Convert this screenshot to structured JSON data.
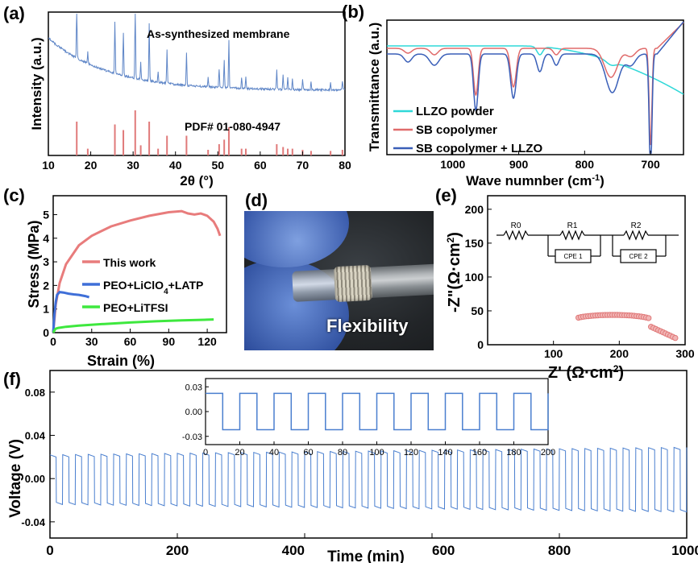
{
  "panel_labels": [
    "(a)",
    "(b)",
    "(c)",
    "(d)",
    "(e)",
    "(f)"
  ],
  "chart_data": [
    {
      "id": "a",
      "type": "line",
      "ylabel": "Intensity (a.u.)",
      "xlabel": "2θ (°)",
      "xlim": [
        10,
        80
      ],
      "xticks": [
        "10",
        "20",
        "30",
        "40",
        "50",
        "60",
        "70",
        "80"
      ],
      "annotations": [
        "As-synthesized membrane",
        "PDF# 01-080-4947"
      ],
      "series": [
        {
          "color": "#5f86c7"
        }
      ],
      "reference_peaks": [
        {
          "x": 16.7,
          "h": 0.6
        },
        {
          "x": 19.3,
          "h": 0.12
        },
        {
          "x": 25.7,
          "h": 0.55
        },
        {
          "x": 27.7,
          "h": 0.45
        },
        {
          "x": 30.5,
          "h": 0.8
        },
        {
          "x": 31.8,
          "h": 0.18
        },
        {
          "x": 33.8,
          "h": 0.6
        },
        {
          "x": 35.9,
          "h": 0.12
        },
        {
          "x": 38.0,
          "h": 0.35
        },
        {
          "x": 42.6,
          "h": 0.35
        },
        {
          "x": 47.7,
          "h": 0.1
        },
        {
          "x": 50.3,
          "h": 0.2
        },
        {
          "x": 51.5,
          "h": 0.28
        },
        {
          "x": 52.6,
          "h": 0.5
        },
        {
          "x": 55.6,
          "h": 0.12
        },
        {
          "x": 56.6,
          "h": 0.12
        },
        {
          "x": 63.9,
          "h": 0.2
        },
        {
          "x": 65.4,
          "h": 0.15
        },
        {
          "x": 66.5,
          "h": 0.12
        },
        {
          "x": 67.6,
          "h": 0.12
        },
        {
          "x": 70.0,
          "h": 0.1
        },
        {
          "x": 72.0,
          "h": 0.08
        },
        {
          "x": 76.6,
          "h": 0.08
        },
        {
          "x": 79.4,
          "h": 0.1
        }
      ]
    },
    {
      "id": "b",
      "type": "line",
      "ylabel": "Transmittance (a.u.)",
      "xlabel": "Wave numnber (cm⁻¹)",
      "xlim": [
        1100,
        650
      ],
      "xticks": [
        "1000",
        "900",
        "800",
        "700"
      ],
      "legend": [
        "LLZO powder",
        "SB copolymer",
        "SB copolymer + LLZO"
      ],
      "legend_position": "bottom-left",
      "series": [
        {
          "name": "LLZO powder",
          "color": "#2fd8d8"
        },
        {
          "name": "SB copolymer",
          "color": "#e06b6b"
        },
        {
          "name": "SB copolymer + LLZO",
          "color": "#3a5fb8"
        }
      ]
    },
    {
      "id": "c",
      "type": "line",
      "ylabel": "Stress (MPa)",
      "xlabel": "Strain  (%)",
      "xlim": [
        0,
        135
      ],
      "ylim": [
        0,
        5.8
      ],
      "xticks": [
        "0",
        "30",
        "60",
        "90",
        "120"
      ],
      "yticks": [
        "0",
        "1",
        "2",
        "3",
        "4",
        "5"
      ],
      "legend": [
        "This work",
        "PEO+LiClO₄+LATP",
        "PEO+LiTFSI"
      ],
      "series": [
        {
          "name": "This work",
          "color": "#e87c7c",
          "x": [
            0,
            2,
            5,
            10,
            20,
            30,
            45,
            60,
            75,
            90,
            100,
            105,
            110,
            115,
            120,
            125,
            128,
            130
          ],
          "y": [
            0,
            1.2,
            2.1,
            2.9,
            3.7,
            4.1,
            4.5,
            4.75,
            4.95,
            5.1,
            5.15,
            5.05,
            5.0,
            5.05,
            4.95,
            4.7,
            4.4,
            4.1
          ]
        },
        {
          "name": "PEO+LiClO₄+LATP",
          "color": "#3f6fd8",
          "x": [
            0,
            1,
            2,
            3,
            5,
            8,
            12,
            16,
            20,
            25,
            28
          ],
          "y": [
            0,
            0.8,
            1.3,
            1.6,
            1.72,
            1.7,
            1.65,
            1.62,
            1.6,
            1.55,
            1.5
          ]
        },
        {
          "name": "PEO+LiTFSI",
          "color": "#3ee83e",
          "x": [
            0,
            1,
            2,
            4,
            10,
            20,
            40,
            60,
            80,
            100,
            120,
            125
          ],
          "y": [
            0,
            0.1,
            0.17,
            0.2,
            0.25,
            0.3,
            0.37,
            0.43,
            0.48,
            0.52,
            0.55,
            0.56
          ]
        }
      ]
    },
    {
      "id": "e",
      "type": "scatter",
      "ylabel": "-Z\"(Ω·cm²)",
      "xlabel": "Z' (Ω·cm²)",
      "xlim": [
        0,
        300
      ],
      "ylim": [
        0,
        220
      ],
      "xticks": [
        "100",
        "200",
        "300"
      ],
      "yticks": [
        "0",
        "50",
        "100",
        "150",
        "200"
      ],
      "circuit_labels": [
        "R0",
        "R1",
        "R2",
        "CPE 1",
        "CPE 2"
      ],
      "series": [
        {
          "color": "#e88a8a"
        }
      ]
    },
    {
      "id": "f",
      "type": "line",
      "ylabel": "Voltage (V)",
      "xlabel": "Time (min)",
      "xlim": [
        0,
        1000
      ],
      "ylim": [
        -0.055,
        0.1
      ],
      "xticks": [
        "0",
        "200",
        "400",
        "600",
        "800",
        "1000"
      ],
      "yticks": [
        "-0.04",
        "0.00",
        "0.04",
        "0.08"
      ],
      "series": [
        {
          "color": "#4a7fcf",
          "period_min": 20,
          "amp_start": 0.022,
          "amp_end": 0.029
        }
      ],
      "inset": {
        "xlim": [
          0,
          200
        ],
        "ylim": [
          -0.04,
          0.04
        ],
        "xticks": [
          "0",
          "20",
          "40",
          "60",
          "80",
          "100",
          "120",
          "140",
          "160",
          "180",
          "200"
        ],
        "yticks": [
          "-0.03",
          "0.00",
          "0.03"
        ],
        "amp": 0.022
      }
    }
  ],
  "photo": {
    "label": "Flexibility"
  }
}
